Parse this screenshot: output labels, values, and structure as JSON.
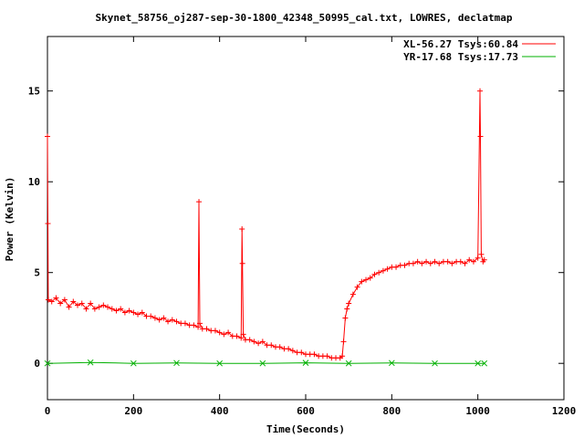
{
  "chart_data": {
    "type": "line",
    "title": "Skynet_58756_oj287-sep-30-1800_42348_50995_cal.txt, LOWRES, declatmap",
    "xlabel": "Time(Seconds)",
    "ylabel": "Power (Kelvin)",
    "xlim": [
      0,
      1200
    ],
    "ylim": [
      -2,
      18
    ],
    "x_ticks": [
      0,
      200,
      400,
      600,
      800,
      1000,
      1200
    ],
    "x_tick_labels": [
      "0",
      "200",
      "400",
      "600",
      "800",
      "1000",
      "1200"
    ],
    "y_ticks": [
      0,
      5,
      10,
      15
    ],
    "y_tick_labels": [
      "0",
      "5",
      "10",
      "15"
    ],
    "grid": false,
    "legend_position": "top-right",
    "series": [
      {
        "name": "XL-56.27 Tsys:60.84",
        "color": "#ff0000",
        "marker": "plus",
        "points": [
          [
            0,
            12.5
          ],
          [
            1,
            7.7
          ],
          [
            2,
            3.5
          ],
          [
            10,
            3.4
          ],
          [
            20,
            3.6
          ],
          [
            30,
            3.3
          ],
          [
            40,
            3.5
          ],
          [
            50,
            3.1
          ],
          [
            60,
            3.4
          ],
          [
            70,
            3.2
          ],
          [
            80,
            3.3
          ],
          [
            90,
            3.0
          ],
          [
            100,
            3.3
          ],
          [
            110,
            3.0
          ],
          [
            120,
            3.1
          ],
          [
            130,
            3.2
          ],
          [
            140,
            3.1
          ],
          [
            150,
            3.0
          ],
          [
            160,
            2.9
          ],
          [
            170,
            3.0
          ],
          [
            180,
            2.8
          ],
          [
            190,
            2.9
          ],
          [
            200,
            2.8
          ],
          [
            210,
            2.7
          ],
          [
            220,
            2.8
          ],
          [
            230,
            2.6
          ],
          [
            240,
            2.6
          ],
          [
            250,
            2.5
          ],
          [
            260,
            2.4
          ],
          [
            270,
            2.5
          ],
          [
            280,
            2.3
          ],
          [
            290,
            2.4
          ],
          [
            300,
            2.3
          ],
          [
            310,
            2.2
          ],
          [
            320,
            2.2
          ],
          [
            330,
            2.1
          ],
          [
            340,
            2.1
          ],
          [
            350,
            2.0
          ],
          [
            352,
            8.9
          ],
          [
            354,
            2.2
          ],
          [
            360,
            1.9
          ],
          [
            370,
            1.9
          ],
          [
            380,
            1.8
          ],
          [
            390,
            1.8
          ],
          [
            400,
            1.7
          ],
          [
            410,
            1.6
          ],
          [
            420,
            1.7
          ],
          [
            430,
            1.5
          ],
          [
            440,
            1.5
          ],
          [
            450,
            1.4
          ],
          [
            452,
            7.4
          ],
          [
            453,
            5.5
          ],
          [
            455,
            1.6
          ],
          [
            460,
            1.3
          ],
          [
            470,
            1.3
          ],
          [
            480,
            1.2
          ],
          [
            490,
            1.1
          ],
          [
            500,
            1.2
          ],
          [
            510,
            1.0
          ],
          [
            520,
            1.0
          ],
          [
            530,
            0.9
          ],
          [
            540,
            0.9
          ],
          [
            550,
            0.8
          ],
          [
            560,
            0.8
          ],
          [
            570,
            0.7
          ],
          [
            580,
            0.6
          ],
          [
            590,
            0.6
          ],
          [
            600,
            0.5
          ],
          [
            610,
            0.5
          ],
          [
            620,
            0.5
          ],
          [
            630,
            0.4
          ],
          [
            640,
            0.4
          ],
          [
            650,
            0.4
          ],
          [
            660,
            0.3
          ],
          [
            670,
            0.3
          ],
          [
            680,
            0.3
          ],
          [
            685,
            0.4
          ],
          [
            688,
            1.2
          ],
          [
            692,
            2.5
          ],
          [
            696,
            3.0
          ],
          [
            700,
            3.3
          ],
          [
            710,
            3.8
          ],
          [
            720,
            4.2
          ],
          [
            730,
            4.5
          ],
          [
            740,
            4.6
          ],
          [
            750,
            4.7
          ],
          [
            760,
            4.9
          ],
          [
            770,
            5.0
          ],
          [
            780,
            5.1
          ],
          [
            790,
            5.2
          ],
          [
            800,
            5.3
          ],
          [
            810,
            5.3
          ],
          [
            820,
            5.4
          ],
          [
            830,
            5.4
          ],
          [
            840,
            5.5
          ],
          [
            850,
            5.5
          ],
          [
            860,
            5.6
          ],
          [
            870,
            5.5
          ],
          [
            880,
            5.6
          ],
          [
            890,
            5.5
          ],
          [
            900,
            5.6
          ],
          [
            910,
            5.5
          ],
          [
            920,
            5.6
          ],
          [
            930,
            5.6
          ],
          [
            940,
            5.5
          ],
          [
            950,
            5.6
          ],
          [
            960,
            5.6
          ],
          [
            970,
            5.5
          ],
          [
            980,
            5.7
          ],
          [
            990,
            5.6
          ],
          [
            1000,
            5.8
          ],
          [
            1005,
            15.0
          ],
          [
            1006,
            12.5
          ],
          [
            1008,
            6.0
          ],
          [
            1012,
            5.6
          ],
          [
            1015,
            5.7
          ]
        ]
      },
      {
        "name": "YR-17.68 Tsys:17.73",
        "color": "#00b000",
        "marker": "cross",
        "points": [
          [
            0,
            0.0
          ],
          [
            100,
            0.05
          ],
          [
            200,
            0.0
          ],
          [
            300,
            0.02
          ],
          [
            400,
            0.0
          ],
          [
            500,
            0.0
          ],
          [
            600,
            0.03
          ],
          [
            700,
            0.0
          ],
          [
            800,
            0.02
          ],
          [
            900,
            0.0
          ],
          [
            1000,
            0.0
          ],
          [
            1015,
            0.0
          ]
        ]
      }
    ]
  }
}
